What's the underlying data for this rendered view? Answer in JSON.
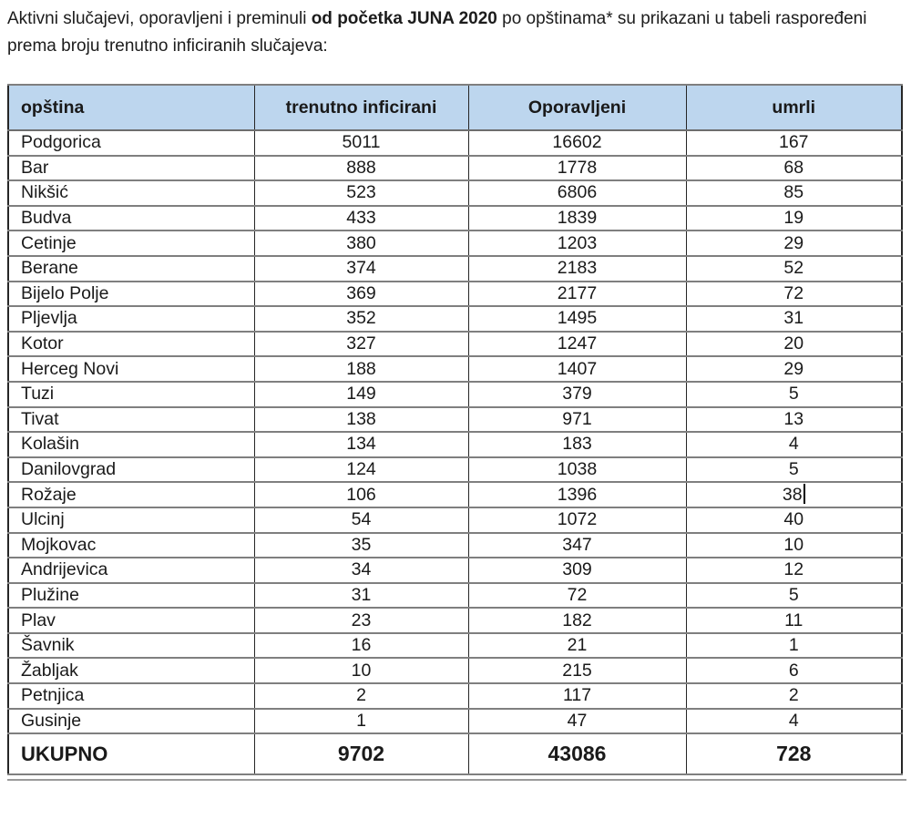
{
  "intro": {
    "text_before": "Aktivni slučajevi, oporavljeni i preminuli ",
    "text_bold": "od početka JUNA 2020",
    "text_after": " po opštinama* su prikazani u tabeli raspoređeni prema broju trenutno inficiranih slučajeva:"
  },
  "table": {
    "columns": [
      "opština",
      "trenutno inficirani",
      "Oporavljeni",
      "umrli"
    ],
    "rows": [
      [
        "Podgorica",
        5011,
        16602,
        167
      ],
      [
        "Bar",
        888,
        1778,
        68
      ],
      [
        "Nikšić",
        523,
        6806,
        85
      ],
      [
        "Budva",
        433,
        1839,
        19
      ],
      [
        "Cetinje",
        380,
        1203,
        29
      ],
      [
        "Berane",
        374,
        2183,
        52
      ],
      [
        "Bijelo Polje",
        369,
        2177,
        72
      ],
      [
        "Pljevlja",
        352,
        1495,
        31
      ],
      [
        "Kotor",
        327,
        1247,
        20
      ],
      [
        "Herceg Novi",
        188,
        1407,
        29
      ],
      [
        "Tuzi",
        149,
        379,
        5
      ],
      [
        "Tivat",
        138,
        971,
        13
      ],
      [
        "Kolašin",
        134,
        183,
        4
      ],
      [
        "Danilovgrad",
        124,
        1038,
        5
      ],
      [
        "Rožaje",
        106,
        1396,
        38
      ],
      [
        "Ulcinj",
        54,
        1072,
        40
      ],
      [
        "Mojkovac",
        35,
        347,
        10
      ],
      [
        "Andrijevica",
        34,
        309,
        12
      ],
      [
        "Plužine",
        31,
        72,
        5
      ],
      [
        "Plav",
        23,
        182,
        11
      ],
      [
        "Šavnik",
        16,
        21,
        1
      ],
      [
        "Žabljak",
        10,
        215,
        6
      ],
      [
        "Petnjica",
        2,
        117,
        2
      ],
      [
        "Gusinje",
        1,
        47,
        4
      ]
    ],
    "total": {
      "label": "UKUPNO",
      "values": [
        9702,
        43086,
        728
      ]
    },
    "caret": {
      "row": 14,
      "col": 3
    },
    "colors": {
      "header_bg": "#bdd6ee",
      "border_dark": "#262626",
      "border_gray": "#7f7f7f"
    }
  }
}
